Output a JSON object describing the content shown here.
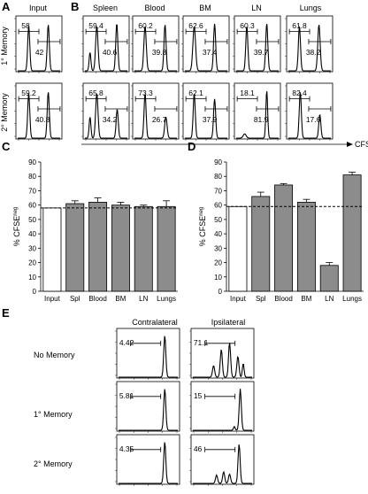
{
  "panel_labels": {
    "a": "A",
    "b": "B",
    "c": "C",
    "d": "D",
    "e": "E"
  },
  "panel_a": {
    "column_label": "Input",
    "rows": [
      {
        "row_label": "1° Memory",
        "left_gate": "58",
        "right_gate": "42"
      },
      {
        "row_label": "2° Memory",
        "left_gate": "59.2",
        "right_gate": "40.8"
      }
    ]
  },
  "panel_b": {
    "columns": [
      "Spleen",
      "Blood",
      "BM",
      "LN",
      "Lungs"
    ],
    "x_axis_label": "CFSE",
    "rows": [
      {
        "row_label": "1° Memory",
        "left_gates": [
          "59.4",
          "60.2",
          "62.6",
          "60.3",
          "61.8"
        ],
        "right_gates": [
          "40.6",
          "39.8",
          "37.4",
          "39.7",
          "38.2"
        ]
      },
      {
        "row_label": "2° Memory",
        "left_gates": [
          "65.8",
          "73.3",
          "62.1",
          "18.1",
          "82.4"
        ],
        "right_gates": [
          "34.2",
          "26.7",
          "37.9",
          "81.9",
          "17.6"
        ]
      }
    ]
  },
  "chart_data": [
    {
      "panel": "C",
      "type": "bar",
      "ylabel_main": "% CFSE",
      "ylabel_sup": "neg",
      "categories": [
        "Input",
        "Spl",
        "Blood",
        "BM",
        "LN",
        "Lungs"
      ],
      "values": [
        58,
        61,
        62,
        60,
        59,
        59
      ],
      "errors": [
        0,
        2,
        3,
        2,
        1,
        4
      ],
      "bar_colors": [
        "#ffffff",
        "#8c8c8c",
        "#8c8c8c",
        "#8c8c8c",
        "#8c8c8c",
        "#8c8c8c"
      ],
      "yticks": [
        0,
        10,
        20,
        30,
        40,
        50,
        60,
        70,
        80,
        90
      ],
      "ylim": [
        0,
        90
      ],
      "reference_line": 58
    },
    {
      "panel": "D",
      "type": "bar",
      "ylabel_main": "% CFSE",
      "ylabel_sup": "neg",
      "categories": [
        "Input",
        "Spl",
        "Blood",
        "BM",
        "LN",
        "Lungs"
      ],
      "values": [
        59,
        66,
        74,
        62,
        18,
        81
      ],
      "errors": [
        0,
        3,
        1,
        2,
        2,
        2
      ],
      "bar_colors": [
        "#ffffff",
        "#8c8c8c",
        "#8c8c8c",
        "#8c8c8c",
        "#8c8c8c",
        "#8c8c8c"
      ],
      "yticks": [
        0,
        10,
        20,
        30,
        40,
        50,
        60,
        70,
        80,
        90
      ],
      "ylim": [
        0,
        90
      ],
      "reference_line": 59
    }
  ],
  "panel_e": {
    "columns": [
      "Contralateral",
      "Ipsilateral"
    ],
    "rows": [
      {
        "row_label": "No Memory",
        "gates": [
          "4.42",
          "71.1"
        ]
      },
      {
        "row_label": "1° Memory",
        "gates": [
          "5.81",
          "15"
        ]
      },
      {
        "row_label": "2° Memory",
        "gates": [
          "4.35",
          "46"
        ]
      }
    ]
  }
}
